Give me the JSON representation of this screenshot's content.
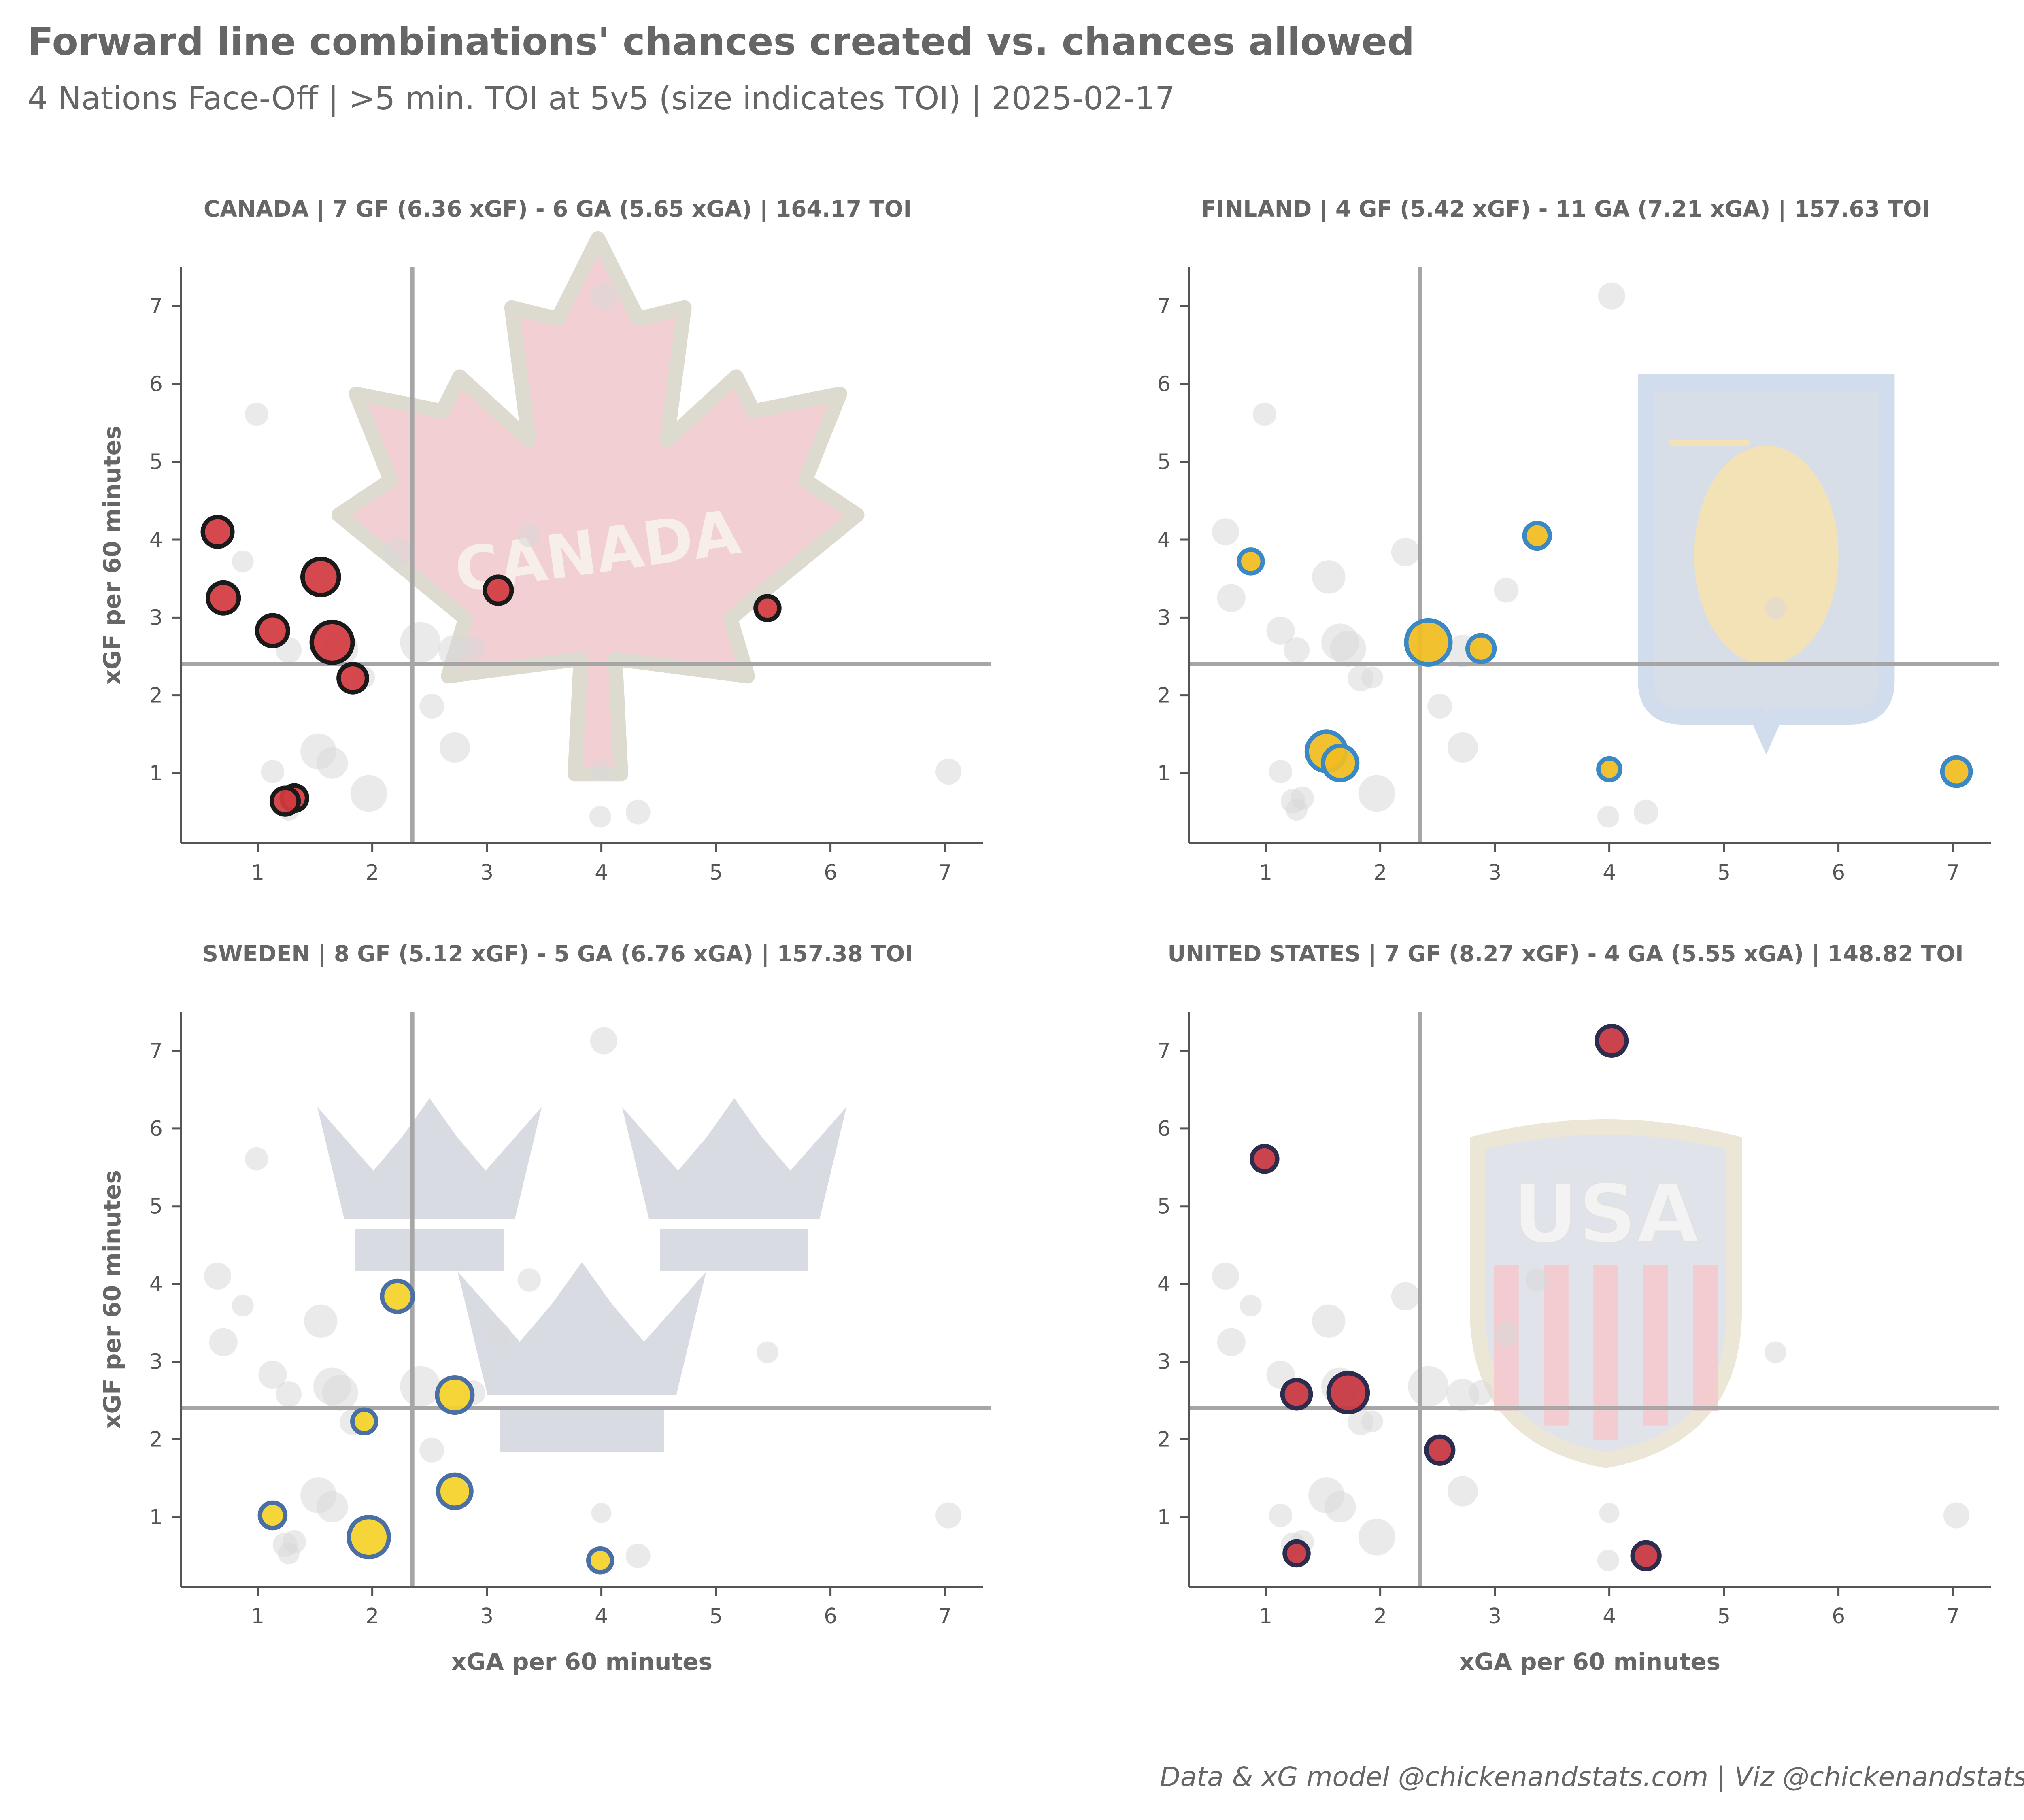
{
  "title": "Forward line combinations' chances created vs. chances allowed",
  "subtitle": "4 Nations Face-Off | >5 min. TOI at 5v5 (size indicates TOI) | 2025-02-17",
  "footer": "Data & xG model @chickenandstats.com | Viz @chickenandstats.com",
  "colors": {
    "text": "#666666",
    "axis": "#555555",
    "reference_line": "#a6a6a6",
    "background_points": "#d9d9d9"
  },
  "chart_data": [
    {
      "type": "scatter",
      "title": "CANADA | 7 GF (6.36 xGF) - 6 GA (5.65 xGA) | 164.17 TOI",
      "xlabel": "",
      "ylabel": "xGF per 60 minutes",
      "x_ticks": [
        "1",
        "2",
        "3",
        "4",
        "5",
        "6",
        "7"
      ],
      "y_ticks": [
        "1",
        "2",
        "3",
        "4",
        "5",
        "6",
        "7"
      ],
      "xlim": [
        0.33,
        7.33
      ],
      "ylim": [
        0.1,
        7.5
      ],
      "reference_x": 2.35,
      "reference_y": 2.4,
      "logo": "canada-maple-leaf-logo",
      "logo_text": "CANADA",
      "point_fill": "#d23a3f",
      "point_edge": "#1a1a1a",
      "points": [
        {
          "x": 0.65,
          "y": 4.1,
          "toi": 9
        },
        {
          "x": 0.7,
          "y": 3.25,
          "toi": 10
        },
        {
          "x": 1.55,
          "y": 3.52,
          "toi": 15
        },
        {
          "x": 1.65,
          "y": 2.68,
          "toi": 20
        },
        {
          "x": 1.13,
          "y": 2.83,
          "toi": 10
        },
        {
          "x": 1.83,
          "y": 2.22,
          "toi": 8
        },
        {
          "x": 1.32,
          "y": 0.68,
          "toi": 6
        },
        {
          "x": 1.24,
          "y": 0.64,
          "toi": 7
        },
        {
          "x": 3.1,
          "y": 3.35,
          "toi": 7
        },
        {
          "x": 5.45,
          "y": 3.12,
          "toi": 5
        }
      ]
    },
    {
      "type": "scatter",
      "title": "FINLAND | 4 GF (5.42 xGF) - 11 GA (7.21 xGA) | 157.63 TOI",
      "xlabel": "",
      "ylabel": "",
      "x_ticks": [
        "1",
        "2",
        "3",
        "4",
        "5",
        "6",
        "7"
      ],
      "y_ticks": [
        "1",
        "2",
        "3",
        "4",
        "5",
        "6",
        "7"
      ],
      "xlim": [
        0.33,
        7.33
      ],
      "ylim": [
        0.1,
        7.5
      ],
      "reference_x": 2.35,
      "reference_y": 2.4,
      "logo": "finland-coat-of-arms-logo",
      "point_fill": "#f2bd1f",
      "point_edge": "#3a88c4",
      "points": [
        {
          "x": 0.87,
          "y": 3.72,
          "toi": 5
        },
        {
          "x": 3.37,
          "y": 4.05,
          "toi": 6
        },
        {
          "x": 2.42,
          "y": 2.68,
          "toi": 24
        },
        {
          "x": 2.88,
          "y": 2.6,
          "toi": 7
        },
        {
          "x": 1.53,
          "y": 1.28,
          "toi": 18
        },
        {
          "x": 1.65,
          "y": 1.13,
          "toi": 13
        },
        {
          "x": 4.0,
          "y": 1.05,
          "toi": 4
        },
        {
          "x": 7.03,
          "y": 1.02,
          "toi": 8
        }
      ]
    },
    {
      "type": "scatter",
      "title": "SWEDEN | 8 GF (5.12 xGF) - 5 GA (6.76 xGA) | 157.38 TOI",
      "xlabel": "xGA per 60 minutes",
      "ylabel": "xGF per 60 minutes",
      "x_ticks": [
        "1",
        "2",
        "3",
        "4",
        "5",
        "6",
        "7"
      ],
      "y_ticks": [
        "1",
        "2",
        "3",
        "4",
        "5",
        "6",
        "7"
      ],
      "xlim": [
        0.33,
        7.33
      ],
      "ylim": [
        0.1,
        7.5
      ],
      "reference_x": 2.35,
      "reference_y": 2.4,
      "logo": "sweden-three-crowns-logo",
      "point_fill": "#f5d327",
      "point_edge": "#4a6fa5",
      "points": [
        {
          "x": 2.22,
          "y": 3.84,
          "toi": 10
        },
        {
          "x": 2.72,
          "y": 2.57,
          "toi": 14
        },
        {
          "x": 1.93,
          "y": 2.23,
          "toi": 5
        },
        {
          "x": 2.72,
          "y": 1.33,
          "toi": 12
        },
        {
          "x": 1.13,
          "y": 1.02,
          "toi": 6
        },
        {
          "x": 1.97,
          "y": 0.74,
          "toi": 19
        },
        {
          "x": 3.99,
          "y": 0.44,
          "toi": 5
        }
      ]
    },
    {
      "type": "scatter",
      "title": "UNITED STATES | 7 GF (8.27 xGF) - 4 GA (5.55 xGA) | 148.82 TOI",
      "xlabel": "xGA per 60 minutes",
      "ylabel": "",
      "x_ticks": [
        "1",
        "2",
        "3",
        "4",
        "5",
        "6",
        "7"
      ],
      "y_ticks": [
        "1",
        "2",
        "3",
        "4",
        "5",
        "6",
        "7"
      ],
      "xlim": [
        0.33,
        7.33
      ],
      "ylim": [
        0.1,
        7.5
      ],
      "reference_x": 2.35,
      "reference_y": 2.4,
      "logo": "usa-shield-logo",
      "logo_text": "USA",
      "point_fill": "#c8343f",
      "point_edge": "#2c2c4e",
      "points": [
        {
          "x": 4.02,
          "y": 7.13,
          "toi": 9
        },
        {
          "x": 0.99,
          "y": 5.61,
          "toi": 6
        },
        {
          "x": 1.27,
          "y": 2.58,
          "toi": 8
        },
        {
          "x": 1.72,
          "y": 2.6,
          "toi": 18
        },
        {
          "x": 2.52,
          "y": 1.86,
          "toi": 7
        },
        {
          "x": 1.27,
          "y": 0.53,
          "toi": 5
        },
        {
          "x": 4.32,
          "y": 0.5,
          "toi": 7
        }
      ]
    }
  ]
}
